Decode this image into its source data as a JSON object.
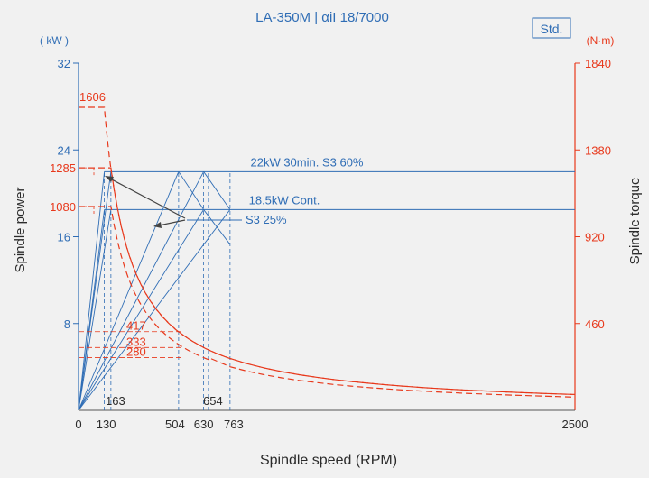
{
  "chart_data": {
    "type": "line",
    "title": "LA-350M | αiI 18/7000",
    "badge": "Std.",
    "xlabel": "Spindle speed (RPM)",
    "ylabel_left": "Spindle power",
    "ylabel_right": "Spindle torque",
    "left_unit": "( kW )",
    "right_unit": "(N·m)",
    "xlim": [
      0,
      2500
    ],
    "ylim_left": [
      0,
      32
    ],
    "ylim_right": [
      0,
      1840
    ],
    "x_ticks": [
      "0",
      "130",
      "504",
      "630",
      "763",
      "2500"
    ],
    "x_tick_values": [
      0,
      130,
      504,
      630,
      763,
      2500
    ],
    "y_left_ticks": [
      "8",
      "16",
      "24",
      "32"
    ],
    "y_left_tick_values": [
      8,
      16,
      24,
      32
    ],
    "y_right_ticks": [
      "460",
      "920",
      "1380",
      "1840"
    ],
    "y_right_tick_values": [
      460,
      920,
      1380,
      1840
    ],
    "inner_x_labels": [
      {
        "text": "163",
        "x": 163
      },
      {
        "text": "654",
        "x": 654
      }
    ],
    "power_series": [
      {
        "name": "22kW 30min. S3 60%",
        "x": [
          0,
          130,
          2500
        ],
        "y": [
          0,
          22,
          22
        ]
      },
      {
        "name": "18.5kW Cont.",
        "x": [
          0,
          130,
          2500
        ],
        "y": [
          0,
          18.5,
          18.5
        ]
      },
      {
        "name": "S3 25%",
        "x": [
          0,
          504,
          630,
          763
        ],
        "y": [
          0,
          22,
          22,
          18.5
        ]
      }
    ],
    "power_annotations": [
      {
        "text": "22kW 30min. S3 60%"
      },
      {
        "text": "18.5kW Cont."
      },
      {
        "text": "S3 25%"
      }
    ],
    "torque_series": [
      {
        "name": "1606",
        "x": [
          0,
          130,
          163,
          504,
          630,
          763,
          2500
        ],
        "y": [
          1606,
          1606,
          1288,
          417,
          333,
          275,
          84
        ]
      },
      {
        "name": "1285",
        "x": [
          0,
          163,
          504,
          630,
          763,
          2500
        ],
        "y": [
          1285,
          1285,
          417,
          333,
          275,
          84
        ]
      },
      {
        "name": "1080",
        "x": [
          0,
          163,
          504,
          654,
          763,
          2500
        ],
        "y": [
          1080,
          1080,
          349,
          280,
          231,
          70
        ]
      }
    ],
    "torque_labels": [
      {
        "text": "1606",
        "value": 1606
      },
      {
        "text": "1285",
        "value": 1285
      },
      {
        "text": "1080",
        "value": 1080
      },
      {
        "text": "417",
        "value": 417
      },
      {
        "text": "333",
        "value": 333
      },
      {
        "text": "280",
        "value": 280
      }
    ],
    "colors": {
      "power": "#2f6db5",
      "torque": "#e8381b",
      "background": "#f1f1f1"
    },
    "grid": false
  }
}
